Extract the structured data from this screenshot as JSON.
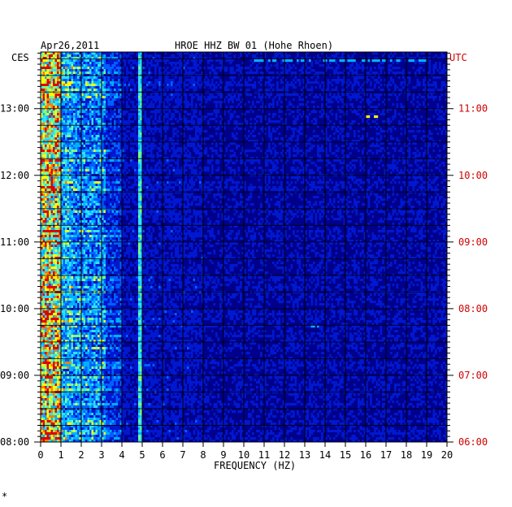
{
  "chart_data": {
    "type": "heatmap",
    "title_date": "Apr26,2011",
    "title_station": "HROE HHZ BW 01 (Hohe Rhoen)",
    "xlabel": "FREQUENCY (HZ)",
    "xlim": [
      0,
      20
    ],
    "x_ticks": [
      "0",
      "1",
      "2",
      "3",
      "4",
      "5",
      "6",
      "7",
      "8",
      "9",
      "10",
      "11",
      "12",
      "13",
      "14",
      "15",
      "16",
      "17",
      "18",
      "19",
      "20"
    ],
    "left_timezone": "CES",
    "right_timezone": "UTC",
    "left_time_labels": [
      "13:00",
      "12:00",
      "11:00",
      "10:00",
      "09:00",
      "08:00"
    ],
    "right_time_labels": [
      "11:00",
      "10:00",
      "09:00",
      "08:00",
      "07:00",
      "06:00"
    ],
    "time_range_hours": [
      8.0,
      13.85
    ],
    "colors": {
      "background": "#00008b",
      "low": "#0000c8",
      "mid": "#00c8ff",
      "high": "#ffff00",
      "peak": "#e00000",
      "utc_label": "#d00000",
      "grid": "#000000"
    },
    "features": [
      {
        "kind": "band",
        "freq_range": [
          0.2,
          1.0
        ],
        "intensity": "high",
        "note": "strong low-frequency energy throughout"
      },
      {
        "kind": "band",
        "freq_range": [
          1.0,
          3.2
        ],
        "intensity": "medium"
      },
      {
        "kind": "line",
        "freq": 4.9,
        "intensity": "medium",
        "note": "persistent narrow line"
      },
      {
        "kind": "event",
        "time_cest": "13:45",
        "freq_range": [
          10.5,
          19.0
        ],
        "intensity": "medium"
      },
      {
        "kind": "event",
        "time_cest": "12:55",
        "freq_range": [
          16.0,
          17.0
        ],
        "intensity": "high"
      },
      {
        "kind": "event",
        "time_cest": "09:45",
        "freq_range": [
          13.0,
          13.8
        ],
        "intensity": "medium"
      }
    ]
  },
  "corner_mark": "*"
}
